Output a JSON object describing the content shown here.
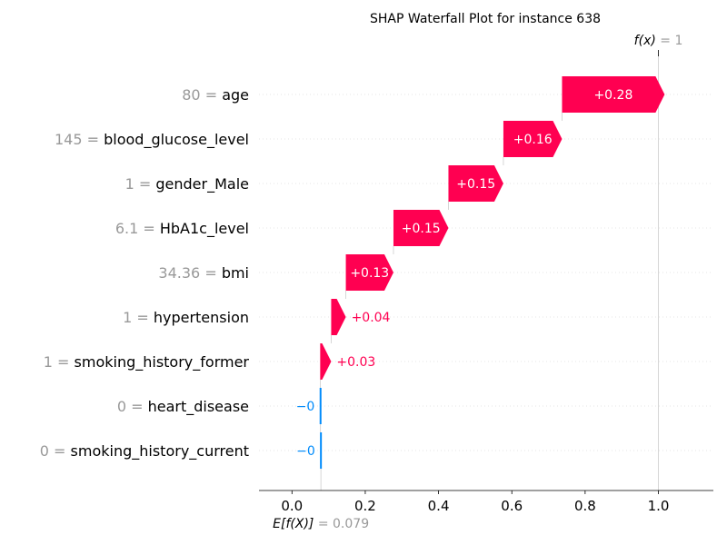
{
  "chart_data": {
    "type": "waterfall",
    "title": "SHAP Waterfall Plot for instance 638",
    "fx_label": "f(x)",
    "fx_value": "1",
    "ex_label": "E[f(X)]",
    "ex_value": "0.079",
    "base_value": 0.079,
    "final_value": 1.0,
    "xlim": [
      -0.09,
      1.15
    ],
    "xticks": [
      0.0,
      0.2,
      0.4,
      0.6,
      0.8,
      1.0
    ],
    "xtick_labels": [
      "0.0",
      "0.2",
      "0.4",
      "0.6",
      "0.8",
      "1.0"
    ],
    "features": [
      {
        "feature_value": "80",
        "name": "age",
        "shap": 0.28,
        "label": "+0.28"
      },
      {
        "feature_value": "145",
        "name": "blood_glucose_level",
        "shap": 0.16,
        "label": "+0.16"
      },
      {
        "feature_value": "1",
        "name": "gender_Male",
        "shap": 0.15,
        "label": "+0.15"
      },
      {
        "feature_value": "6.1",
        "name": "HbA1c_level",
        "shap": 0.15,
        "label": "+0.15"
      },
      {
        "feature_value": "34.36",
        "name": "bmi",
        "shap": 0.13,
        "label": "+0.13"
      },
      {
        "feature_value": "1",
        "name": "hypertension",
        "shap": 0.04,
        "label": "+0.04"
      },
      {
        "feature_value": "1",
        "name": "smoking_history_former",
        "shap": 0.03,
        "label": "+0.03"
      },
      {
        "feature_value": "0",
        "name": "heart_disease",
        "shap": -0.001,
        "label": "−0"
      },
      {
        "feature_value": "0",
        "name": "smoking_history_current",
        "shap": -0.001,
        "label": "−0"
      }
    ],
    "colors": {
      "positive": "#ff0051",
      "negative": "#008bfb",
      "grey": "#999999",
      "text": "#000000"
    }
  }
}
